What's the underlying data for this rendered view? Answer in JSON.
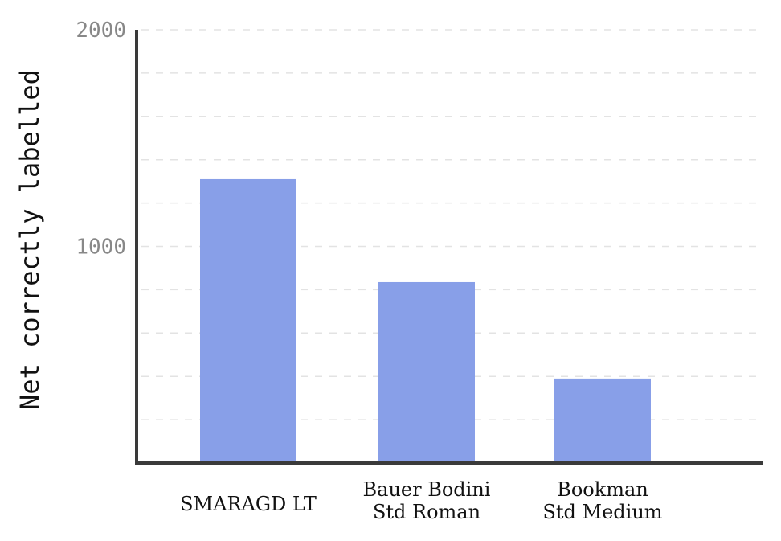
{
  "chart_data": {
    "type": "bar",
    "title": "",
    "xlabel": "",
    "ylabel": "Net correctly labelled",
    "ylim": [
      0,
      2000
    ],
    "yticks": [
      1000,
      2000
    ],
    "ytick_labels": [
      "1000",
      "2000"
    ],
    "grid": "horizontal dashed",
    "categories": [
      "SMARAGD LT",
      "Bauer Bodini Std Roman",
      "Bookman Std Medium"
    ],
    "category_lines": [
      [
        "SMARAGD LT"
      ],
      [
        "Bauer Bodini",
        "Std Roman"
      ],
      [
        "Bookman",
        "Std Medium"
      ]
    ],
    "values": [
      1310,
      835,
      390
    ],
    "colors": {
      "bar": "#889fe8",
      "axis": "#3a3a3a",
      "grid": "#e3e3e3"
    }
  }
}
